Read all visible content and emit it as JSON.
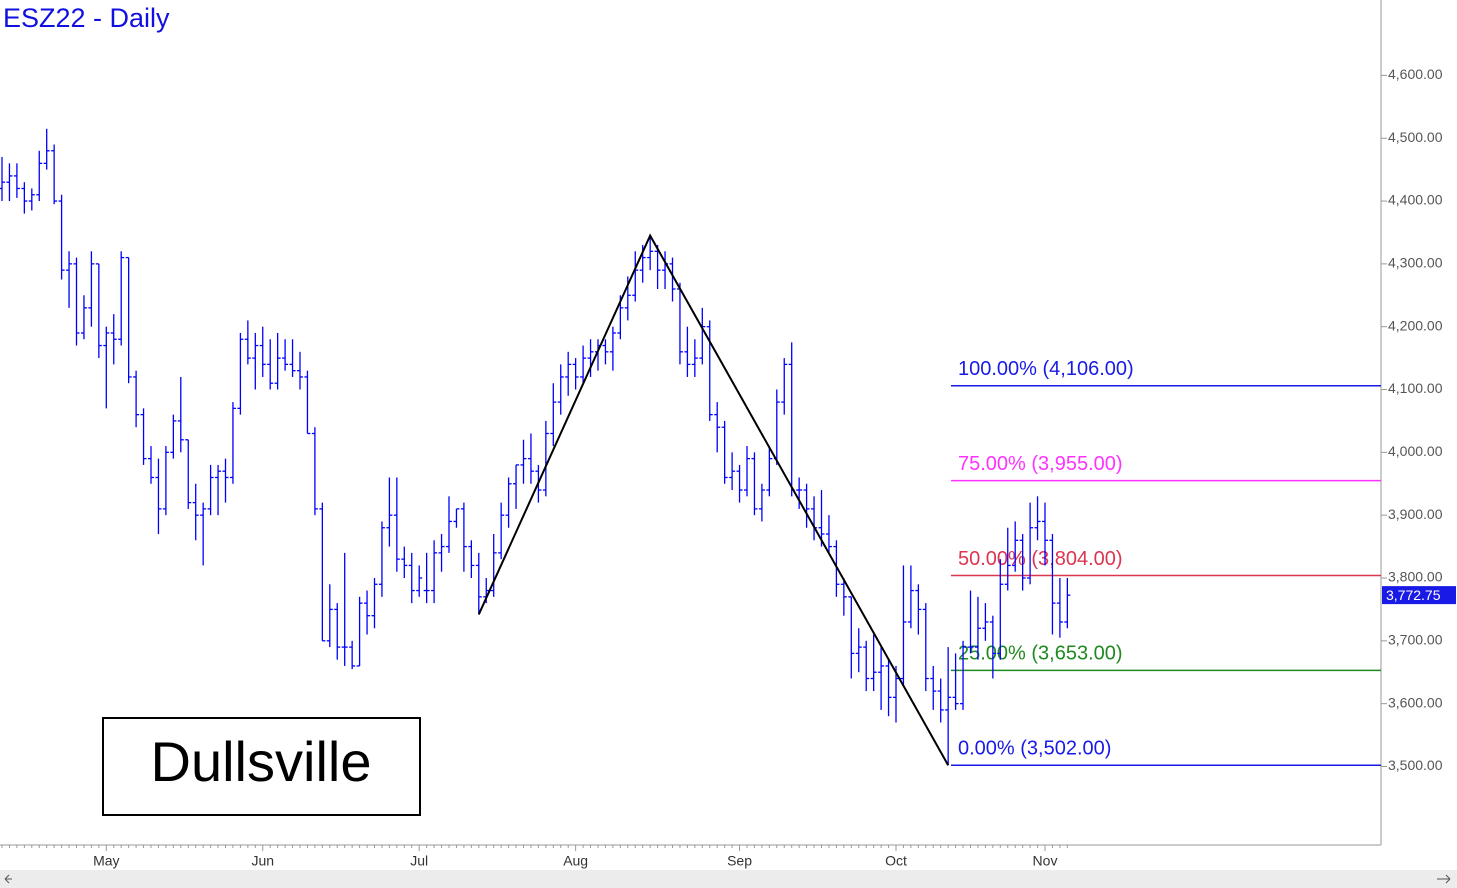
{
  "chart_data": {
    "type": "ohlc",
    "title": "ESZ22 - Daily",
    "annotation": "Dullsville",
    "color": "#0000ff",
    "categories": [
      null,
      null,
      null,
      null,
      null,
      null,
      null,
      null,
      null,
      null,
      null,
      null,
      null,
      null,
      "May",
      null,
      null,
      null,
      null,
      null,
      null,
      null,
      null,
      null,
      null,
      null,
      null,
      null,
      null,
      null,
      null,
      null,
      null,
      null,
      null,
      "Jun",
      null,
      null,
      null,
      null,
      null,
      null,
      null,
      null,
      null,
      null,
      null,
      null,
      null,
      null,
      null,
      null,
      null,
      null,
      null,
      null,
      "Jul",
      null,
      null,
      null,
      null,
      null,
      null,
      null,
      null,
      null,
      null,
      null,
      null,
      null,
      null,
      null,
      null,
      null,
      null,
      null,
      null,
      "Aug",
      null,
      null,
      null,
      null,
      null,
      null,
      null,
      null,
      null,
      null,
      null,
      null,
      null,
      null,
      null,
      null,
      null,
      null,
      null,
      null,
      null,
      "Sep",
      null,
      null,
      null,
      null,
      null,
      null,
      null,
      null,
      null,
      null,
      null,
      null,
      null,
      null,
      null,
      null,
      null,
      null,
      null,
      null,
      "Oct",
      null,
      null,
      null,
      null,
      null,
      null,
      null,
      null,
      null,
      null,
      null,
      null,
      null,
      null,
      null,
      null,
      null,
      null,
      null,
      "Nov",
      null,
      null,
      null
    ],
    "ohlc": [
      [
        4420,
        4470,
        4400,
        4430
      ],
      [
        4430,
        4460,
        4400,
        4440
      ],
      [
        4440,
        4460,
        4405,
        4420
      ],
      [
        4420,
        4430,
        4380,
        4400
      ],
      [
        4400,
        4420,
        4385,
        4410
      ],
      [
        4410,
        4480,
        4400,
        4460
      ],
      [
        4460,
        4515,
        4450,
        4480
      ],
      [
        4480,
        4490,
        4395,
        4400
      ],
      [
        4400,
        4410,
        4275,
        4290
      ],
      [
        4290,
        4320,
        4230,
        4300
      ],
      [
        4300,
        4310,
        4170,
        4190
      ],
      [
        4190,
        4250,
        4180,
        4230
      ],
      [
        4230,
        4320,
        4200,
        4300
      ],
      [
        4300,
        4300,
        4150,
        4170
      ],
      [
        4170,
        4200,
        4070,
        4190
      ],
      [
        4190,
        4220,
        4140,
        4180
      ],
      [
        4180,
        4320,
        4170,
        4310
      ],
      [
        4310,
        4310,
        4110,
        4120
      ],
      [
        4120,
        4130,
        4040,
        4060
      ],
      [
        4060,
        4070,
        3980,
        3990
      ],
      [
        3990,
        4010,
        3950,
        3960
      ],
      [
        3960,
        3990,
        3870,
        3910
      ],
      [
        3910,
        4010,
        3900,
        4000
      ],
      [
        4000,
        4060,
        3990,
        4050
      ],
      [
        4050,
        4120,
        4000,
        4020
      ],
      [
        4020,
        4020,
        3910,
        3920
      ],
      [
        3920,
        3950,
        3860,
        3900
      ],
      [
        3900,
        3920,
        3820,
        3910
      ],
      [
        3910,
        3980,
        3900,
        3960
      ],
      [
        3960,
        3980,
        3900,
        3970
      ],
      [
        3970,
        3990,
        3920,
        3960
      ],
      [
        3960,
        4080,
        3950,
        4070
      ],
      [
        4070,
        4190,
        4060,
        4180
      ],
      [
        4180,
        4210,
        4140,
        4150
      ],
      [
        4150,
        4190,
        4100,
        4170
      ],
      [
        4170,
        4200,
        4120,
        4140
      ],
      [
        4140,
        4180,
        4100,
        4110
      ],
      [
        4110,
        4190,
        4100,
        4150
      ],
      [
        4150,
        4180,
        4130,
        4140
      ],
      [
        4140,
        4180,
        4120,
        4130
      ],
      [
        4130,
        4160,
        4100,
        4120
      ],
      [
        4120,
        4130,
        4030,
        4030
      ],
      [
        4030,
        4040,
        3900,
        3910
      ],
      [
        3910,
        3920,
        3700,
        3700
      ],
      [
        3700,
        3790,
        3690,
        3750
      ],
      [
        3750,
        3760,
        3670,
        3690
      ],
      [
        3690,
        3840,
        3660,
        3690
      ],
      [
        3690,
        3700,
        3655,
        3660
      ],
      [
        3660,
        3770,
        3660,
        3760
      ],
      [
        3760,
        3780,
        3710,
        3740
      ],
      [
        3740,
        3800,
        3720,
        3790
      ],
      [
        3790,
        3890,
        3770,
        3880
      ],
      [
        3880,
        3960,
        3850,
        3900
      ],
      [
        3900,
        3960,
        3810,
        3830
      ],
      [
        3830,
        3850,
        3800,
        3820
      ],
      [
        3820,
        3840,
        3760,
        3780
      ],
      [
        3780,
        3820,
        3770,
        3800
      ],
      [
        3780,
        3840,
        3760,
        3780
      ],
      [
        3780,
        3860,
        3760,
        3840
      ],
      [
        3840,
        3870,
        3810,
        3850
      ],
      [
        3850,
        3930,
        3840,
        3890
      ],
      [
        3890,
        3910,
        3880,
        3910
      ],
      [
        3910,
        3920,
        3810,
        3850
      ],
      [
        3850,
        3860,
        3800,
        3820
      ],
      [
        3820,
        3840,
        3742,
        3770
      ],
      [
        3770,
        3800,
        3760,
        3780
      ],
      [
        3780,
        3870,
        3770,
        3840
      ],
      [
        3840,
        3920,
        3830,
        3900
      ],
      [
        3900,
        3960,
        3880,
        3950
      ],
      [
        3950,
        3980,
        3910,
        3980
      ],
      [
        3980,
        4020,
        3950,
        3990
      ],
      [
        3990,
        4030,
        3950,
        3970
      ],
      [
        3970,
        3980,
        3920,
        3940
      ],
      [
        3940,
        4050,
        3930,
        4030
      ],
      [
        4030,
        4110,
        4010,
        4080
      ],
      [
        4080,
        4140,
        4060,
        4120
      ],
      [
        4120,
        4160,
        4090,
        4140
      ],
      [
        4140,
        4150,
        4100,
        4120
      ],
      [
        4120,
        4170,
        4110,
        4150
      ],
      [
        4150,
        4180,
        4120,
        4160
      ],
      [
        4160,
        4180,
        4130,
        4170
      ],
      [
        4170,
        4180,
        4140,
        4160
      ],
      [
        4160,
        4200,
        4130,
        4190
      ],
      [
        4190,
        4250,
        4180,
        4230
      ],
      [
        4230,
        4280,
        4210,
        4250
      ],
      [
        4250,
        4320,
        4240,
        4290
      ],
      [
        4290,
        4330,
        4270,
        4310
      ],
      [
        4310,
        4345,
        4290,
        4320
      ],
      [
        4320,
        4330,
        4260,
        4290
      ],
      [
        4290,
        4320,
        4260,
        4300
      ],
      [
        4300,
        4310,
        4240,
        4260
      ],
      [
        4260,
        4270,
        4140,
        4160
      ],
      [
        4160,
        4200,
        4120,
        4140
      ],
      [
        4140,
        4180,
        4120,
        4150
      ],
      [
        4150,
        4230,
        4140,
        4200
      ],
      [
        4200,
        4210,
        4050,
        4060
      ],
      [
        4060,
        4080,
        4000,
        4040
      ],
      [
        4040,
        4050,
        3950,
        3960
      ],
      [
        3960,
        4000,
        3940,
        3970
      ],
      [
        3970,
        3980,
        3920,
        3940
      ],
      [
        3940,
        4010,
        3930,
        3990
      ],
      [
        3990,
        4000,
        3900,
        3910
      ],
      [
        3910,
        3950,
        3890,
        3940
      ],
      [
        3940,
        4010,
        3930,
        3990
      ],
      [
        3990,
        4100,
        3980,
        4080
      ],
      [
        4080,
        4150,
        4060,
        4140
      ],
      [
        4140,
        4175,
        3930,
        3940
      ],
      [
        3940,
        3960,
        3910,
        3940
      ],
      [
        3940,
        3950,
        3880,
        3910
      ],
      [
        3910,
        3930,
        3860,
        3880
      ],
      [
        3880,
        3940,
        3850,
        3870
      ],
      [
        3870,
        3900,
        3840,
        3850
      ],
      [
        3850,
        3860,
        3770,
        3790
      ],
      [
        3790,
        3800,
        3740,
        3770
      ],
      [
        3770,
        3770,
        3640,
        3680
      ],
      [
        3680,
        3720,
        3650,
        3690
      ],
      [
        3690,
        3700,
        3620,
        3640
      ],
      [
        3640,
        3710,
        3620,
        3650
      ],
      [
        3650,
        3690,
        3590,
        3660
      ],
      [
        3660,
        3670,
        3580,
        3610
      ],
      [
        3610,
        3660,
        3570,
        3640
      ],
      [
        3640,
        3820,
        3630,
        3730
      ],
      [
        3730,
        3820,
        3720,
        3780
      ],
      [
        3780,
        3790,
        3710,
        3750
      ],
      [
        3750,
        3760,
        3620,
        3640
      ],
      [
        3640,
        3660,
        3590,
        3620
      ],
      [
        3620,
        3640,
        3570,
        3590
      ],
      [
        3590,
        3690,
        3502,
        3610
      ],
      [
        3610,
        3680,
        3590,
        3600
      ],
      [
        3600,
        3700,
        3590,
        3690
      ],
      [
        3690,
        3780,
        3680,
        3690
      ],
      [
        3690,
        3770,
        3670,
        3720
      ],
      [
        3720,
        3760,
        3700,
        3730
      ],
      [
        3730,
        3740,
        3640,
        3680
      ],
      [
        3680,
        3830,
        3670,
        3790
      ],
      [
        3790,
        3880,
        3780,
        3820
      ],
      [
        3820,
        3890,
        3810,
        3860
      ],
      [
        3860,
        3870,
        3780,
        3800
      ],
      [
        3800,
        3920,
        3790,
        3880
      ],
      [
        3880,
        3930,
        3860,
        3890
      ],
      [
        3890,
        3920,
        3820,
        3860
      ],
      [
        3860,
        3870,
        3710,
        3760
      ],
      [
        3760,
        3800,
        3705,
        3730
      ],
      [
        3730,
        3800,
        3720,
        3772.75
      ]
    ],
    "last_close_label": "3,772.75",
    "ylim": [
      3375,
      4720
    ],
    "yticks": [
      {
        "value": 3500,
        "label": "3,500.00"
      },
      {
        "value": 3600,
        "label": "3,600.00"
      },
      {
        "value": 3700,
        "label": "3,700.00"
      },
      {
        "value": 3800,
        "label": "3,800.00"
      },
      {
        "value": 3900,
        "label": "3,900.00"
      },
      {
        "value": 4000,
        "label": "4,000.00"
      },
      {
        "value": 4100,
        "label": "4,100.00"
      },
      {
        "value": 4200,
        "label": "4,200.00"
      },
      {
        "value": 4300,
        "label": "4,300.00"
      },
      {
        "value": 4400,
        "label": "4,400.00"
      },
      {
        "value": 4500,
        "label": "4,500.00"
      },
      {
        "value": 4600,
        "label": "4,600.00"
      }
    ],
    "fib_levels": [
      {
        "label": "100.00% (4,106.00)",
        "value": 4106,
        "color": "#1a1ae6"
      },
      {
        "label": "75.00% (3,955.00)",
        "value": 3955,
        "color": "#ff33ff"
      },
      {
        "label": "50.00% (3,804.00)",
        "value": 3804,
        "color": "#dc3550"
      },
      {
        "label": "25.00% (3,653.00)",
        "value": 3653,
        "color": "#1f8a1f"
      },
      {
        "label": "0.00% (3,502.00)",
        "value": 3502,
        "color": "#1a1ae6"
      }
    ],
    "trendline": {
      "x": [
        64,
        87,
        127
      ],
      "values": [
        3742,
        4345,
        3502
      ],
      "color": "#000000"
    }
  }
}
